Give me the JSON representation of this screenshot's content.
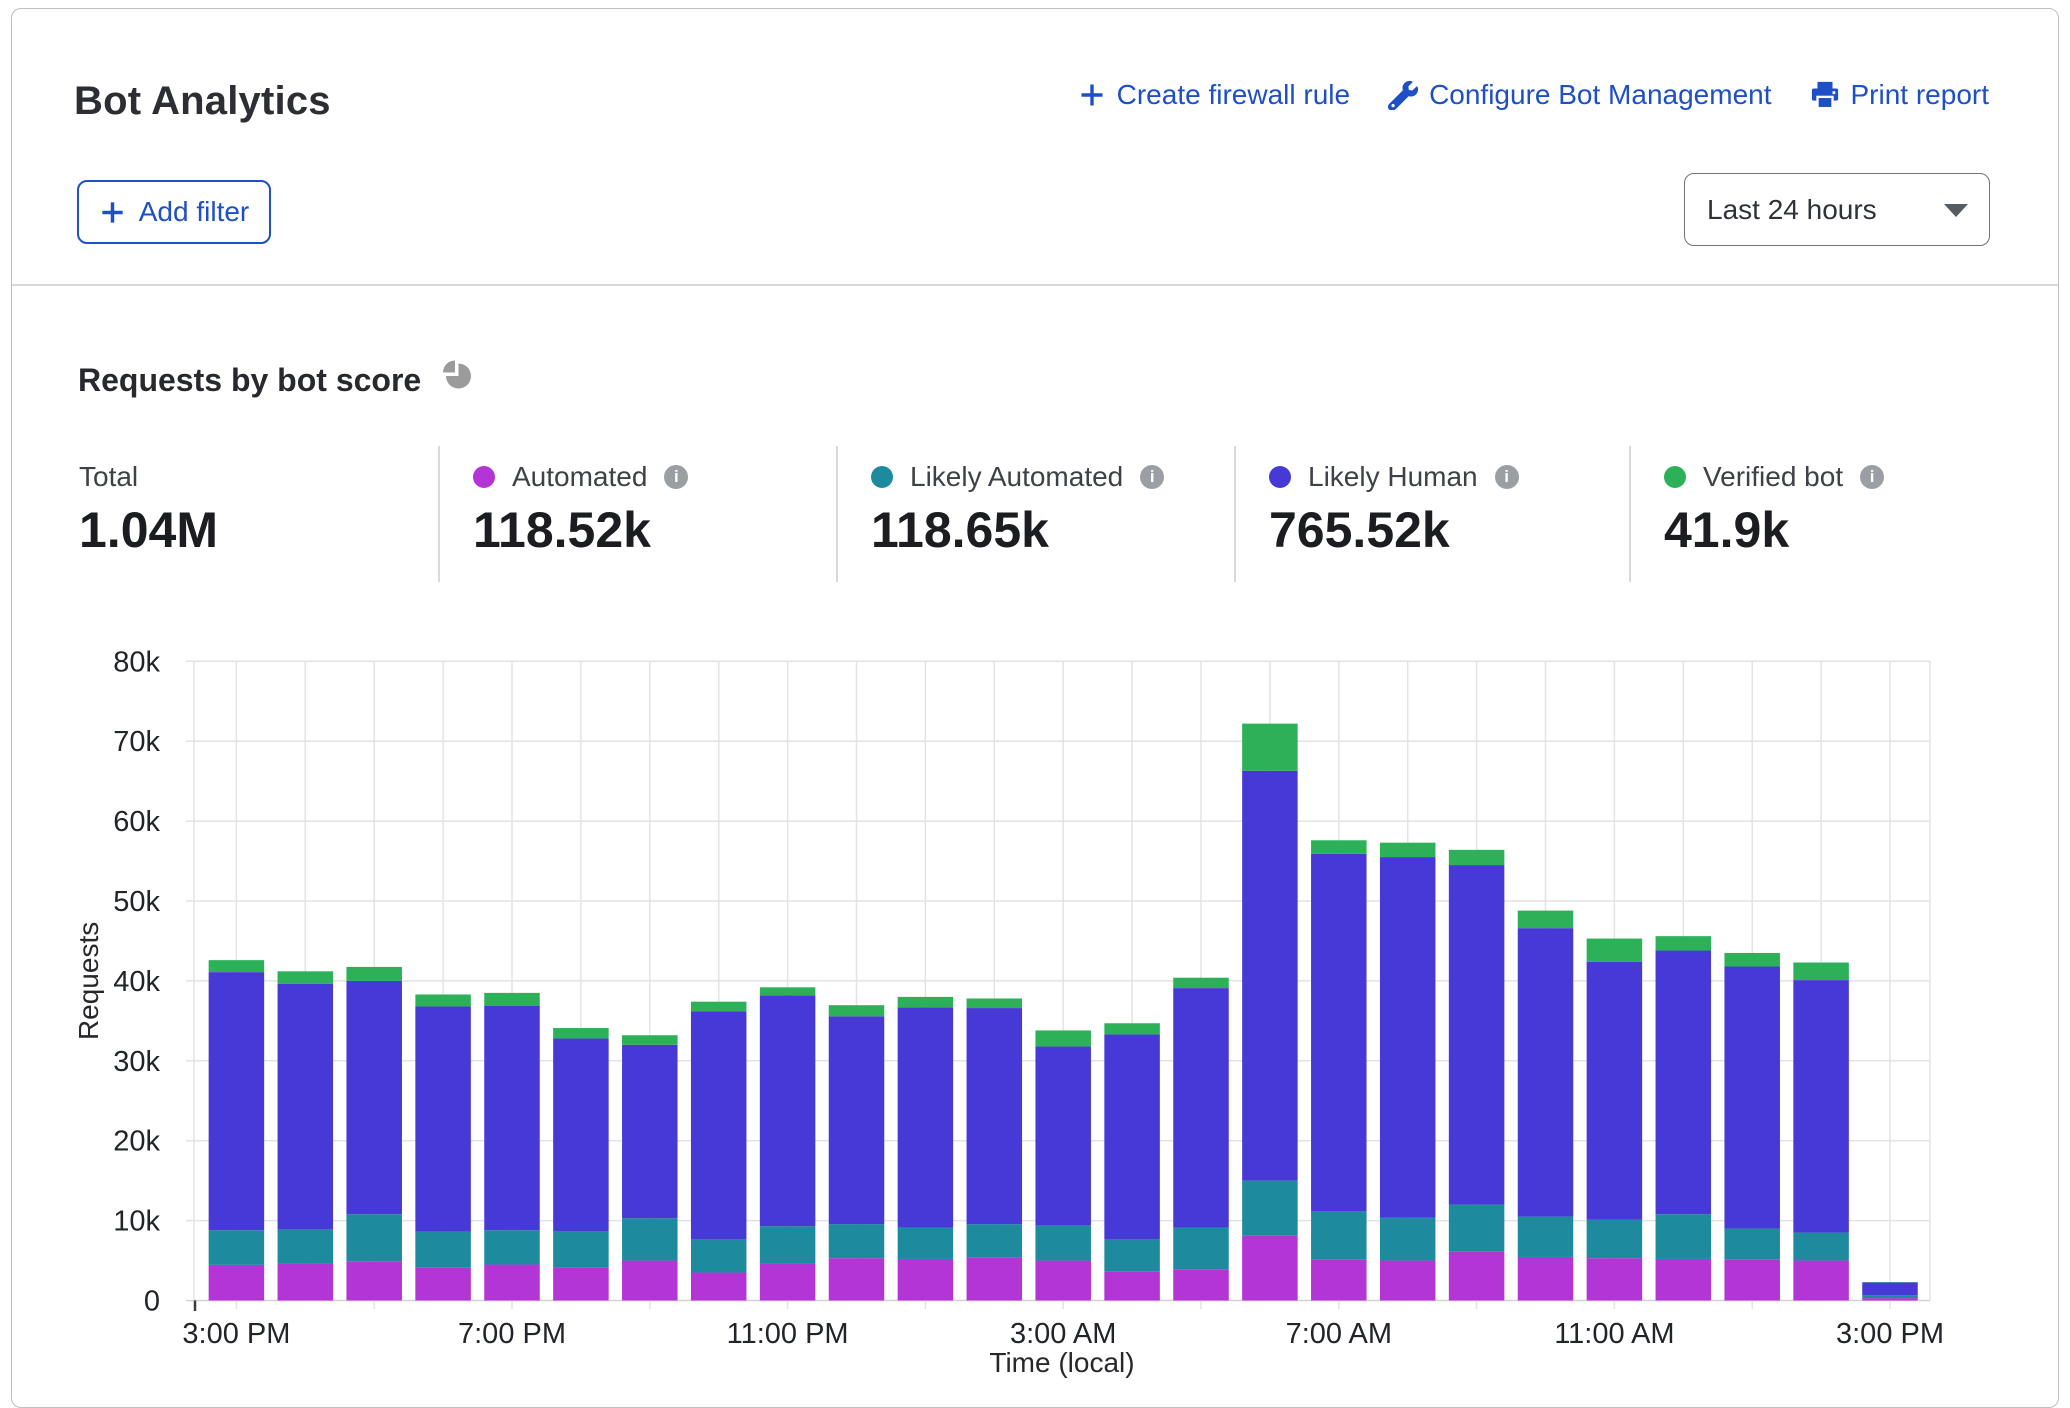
{
  "header": {
    "title": "Bot Analytics",
    "actions": [
      {
        "icon": "plus-icon",
        "label": "Create firewall rule"
      },
      {
        "icon": "wrench-icon",
        "label": "Configure Bot Management"
      },
      {
        "icon": "printer-icon",
        "label": "Print report"
      }
    ],
    "add_filter": {
      "icon": "plus-icon",
      "label": "Add filter"
    },
    "time_range_selector": {
      "value": "Last 24 hours"
    }
  },
  "section": {
    "title": "Requests by bot score",
    "icon": "pie-chart-icon"
  },
  "stats": {
    "total": {
      "label": "Total",
      "value": "1.04M"
    },
    "series": [
      {
        "label": "Automated",
        "value": "118.52k",
        "color": "#b335d6"
      },
      {
        "label": "Likely Automated",
        "value": "118.65k",
        "color": "#1e8a9e"
      },
      {
        "label": "Likely Human",
        "value": "765.52k",
        "color": "#4739d6"
      },
      {
        "label": "Verified bot",
        "value": "41.9k",
        "color": "#2cb159"
      }
    ]
  },
  "chart_data": {
    "type": "bar",
    "stacked": true,
    "title": "Requests by bot score",
    "xlabel": "Time (local)",
    "ylabel": "Requests",
    "ylim": [
      0,
      80000
    ],
    "grid": true,
    "yticks": [
      {
        "value": 0,
        "label": "0"
      },
      {
        "value": 10000,
        "label": "10k"
      },
      {
        "value": 20000,
        "label": "20k"
      },
      {
        "value": 30000,
        "label": "30k"
      },
      {
        "value": 40000,
        "label": "40k"
      },
      {
        "value": 50000,
        "label": "50k"
      },
      {
        "value": 60000,
        "label": "60k"
      },
      {
        "value": 70000,
        "label": "70k"
      },
      {
        "value": 80000,
        "label": "80k"
      }
    ],
    "categories": [
      "3:00 PM",
      "4:00 PM",
      "5:00 PM",
      "6:00 PM",
      "7:00 PM",
      "8:00 PM",
      "9:00 PM",
      "10:00 PM",
      "11:00 PM",
      "12:00 AM",
      "1:00 AM",
      "2:00 AM",
      "3:00 AM",
      "4:00 AM",
      "5:00 AM",
      "6:00 AM",
      "7:00 AM",
      "8:00 AM",
      "9:00 AM",
      "10:00 AM",
      "11:00 AM",
      "12:00 PM",
      "1:00 PM",
      "2:00 PM",
      "3:00 PM"
    ],
    "xticks": [
      {
        "index": 0,
        "label": "3:00 PM"
      },
      {
        "index": 4,
        "label": "7:00 PM"
      },
      {
        "index": 8,
        "label": "11:00 PM"
      },
      {
        "index": 12,
        "label": "3:00 AM"
      },
      {
        "index": 16,
        "label": "7:00 AM"
      },
      {
        "index": 20,
        "label": "11:00 AM"
      },
      {
        "index": 24,
        "label": "3:00 PM"
      }
    ],
    "series": [
      {
        "name": "Automated",
        "color": "#b335d6",
        "values": [
          4460,
          4580,
          4900,
          4100,
          4500,
          4150,
          5000,
          3500,
          4640,
          5300,
          5200,
          5400,
          5000,
          3650,
          3900,
          8100,
          5100,
          5000,
          6100,
          5450,
          5300,
          5200,
          5100,
          5000,
          300
        ]
      },
      {
        "name": "Likely Automated",
        "color": "#1e8a9e",
        "values": [
          4340,
          4320,
          5900,
          4500,
          4300,
          4550,
          5300,
          4200,
          4660,
          4260,
          3900,
          4150,
          4400,
          4050,
          5200,
          6900,
          6100,
          5350,
          5900,
          5050,
          4800,
          5600,
          3900,
          3500,
          350
        ]
      },
      {
        "name": "Likely Human",
        "color": "#4739d6",
        "values": [
          32300,
          30750,
          29200,
          28200,
          28100,
          24100,
          21700,
          28500,
          28900,
          26000,
          27600,
          27050,
          22400,
          25600,
          30000,
          51300,
          44700,
          45150,
          42500,
          36100,
          32300,
          33000,
          32800,
          31600,
          1600
        ]
      },
      {
        "name": "Verified bot",
        "color": "#2cb159",
        "values": [
          1500,
          1550,
          1750,
          1500,
          1600,
          1300,
          1200,
          1200,
          1000,
          1400,
          1300,
          1200,
          2000,
          1400,
          1300,
          5900,
          1700,
          1800,
          1900,
          2200,
          2900,
          1800,
          1700,
          2200,
          50
        ]
      }
    ]
  }
}
